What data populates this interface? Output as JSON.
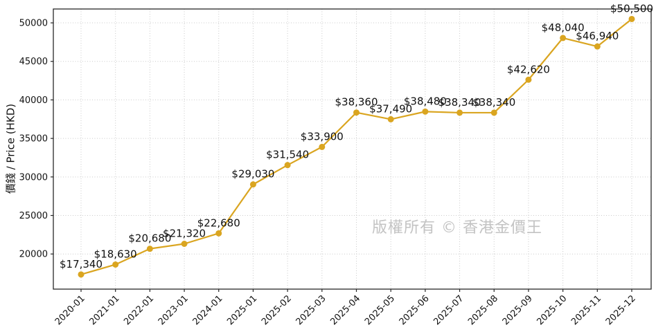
{
  "chart_data": {
    "type": "line",
    "title": "",
    "xlabel": "",
    "ylabel": "價錢 / Price (HKD)",
    "watermark": "版權所有 © 香港金價王",
    "categories": [
      "2020-01",
      "2021-01",
      "2022-01",
      "2023-01",
      "2024-01",
      "2025-01",
      "2025-02",
      "2025-03",
      "2025-04",
      "2025-05",
      "2025-06",
      "2025-07",
      "2025-08",
      "2025-09",
      "2025-10",
      "2025-11",
      "2025-12"
    ],
    "series": [
      {
        "name": "gold-price-hkd",
        "values": [
          17340,
          18630,
          20680,
          21320,
          22680,
          29030,
          31540,
          33900,
          38360,
          37490,
          38480,
          38340,
          38340,
          42620,
          48040,
          46940,
          50500
        ]
      }
    ],
    "point_labels": [
      "$17,340",
      "$18,630",
      "$20,680",
      "$21,320",
      "$22,680",
      "$29,030",
      "$31,540",
      "$33,900",
      "$38,360",
      "$37,490",
      "$38,480",
      "$38,340",
      "$38,340",
      "$42,620",
      "$48,040",
      "$46,940",
      "$50,500"
    ],
    "yticks": [
      20000,
      25000,
      30000,
      35000,
      40000,
      45000,
      50000
    ],
    "ylim": [
      15440,
      51800
    ],
    "grid": true,
    "grid_style": "dotted",
    "legend_position": "none",
    "line_color": "#DAA520",
    "marker_color": "#DAA520",
    "grid_color": "#c9c9c9",
    "axis_color": "#262626",
    "label_color": "#111111",
    "watermark_color": "#c3c3c3"
  }
}
